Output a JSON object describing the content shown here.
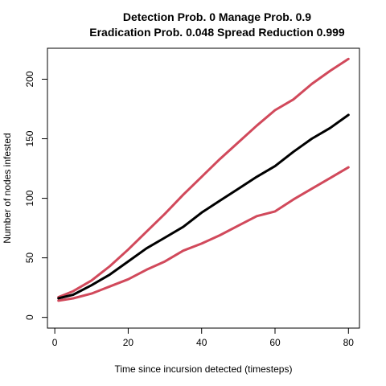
{
  "chart_data": {
    "type": "line",
    "title_line1": "Detection Prob. 0 Manage Prob. 0.9",
    "title_line2": "Eradication Prob. 0.048 Spread Reduction 0.999",
    "xlabel": "Time since incursion detected (timesteps)",
    "ylabel": "Number of nodes infested",
    "xlim": [
      -2,
      83
    ],
    "ylim": [
      -9,
      226
    ],
    "xticks": [
      0,
      20,
      40,
      60,
      80
    ],
    "yticks": [
      0,
      50,
      100,
      150,
      200
    ],
    "grid": false,
    "legend": "none",
    "series": [
      {
        "color": "#D1495B",
        "width": 3,
        "points": [
          [
            1,
            17
          ],
          [
            5,
            22
          ],
          [
            10,
            31
          ],
          [
            15,
            43
          ],
          [
            20,
            57
          ],
          [
            25,
            72
          ],
          [
            30,
            87
          ],
          [
            35,
            103
          ],
          [
            40,
            118
          ],
          [
            45,
            133
          ],
          [
            50,
            147
          ],
          [
            55,
            161
          ],
          [
            60,
            174
          ],
          [
            65,
            183
          ],
          [
            70,
            196
          ],
          [
            75,
            207
          ],
          [
            80,
            217
          ]
        ]
      },
      {
        "color": "#000000",
        "width": 3,
        "points": [
          [
            1,
            16
          ],
          [
            5,
            19
          ],
          [
            10,
            27
          ],
          [
            15,
            36
          ],
          [
            20,
            47
          ],
          [
            25,
            58
          ],
          [
            30,
            67
          ],
          [
            35,
            76
          ],
          [
            40,
            88
          ],
          [
            45,
            98
          ],
          [
            50,
            108
          ],
          [
            55,
            118
          ],
          [
            60,
            127
          ],
          [
            65,
            139
          ],
          [
            70,
            150
          ],
          [
            75,
            159
          ],
          [
            80,
            170
          ]
        ]
      },
      {
        "color": "#D1495B",
        "width": 3,
        "points": [
          [
            1,
            14
          ],
          [
            5,
            16
          ],
          [
            10,
            20
          ],
          [
            15,
            26
          ],
          [
            20,
            32
          ],
          [
            25,
            40
          ],
          [
            30,
            47
          ],
          [
            35,
            56
          ],
          [
            40,
            62
          ],
          [
            45,
            69
          ],
          [
            50,
            77
          ],
          [
            55,
            85
          ],
          [
            60,
            89
          ],
          [
            65,
            99
          ],
          [
            70,
            108
          ],
          [
            75,
            117
          ],
          [
            80,
            126
          ]
        ]
      }
    ]
  }
}
